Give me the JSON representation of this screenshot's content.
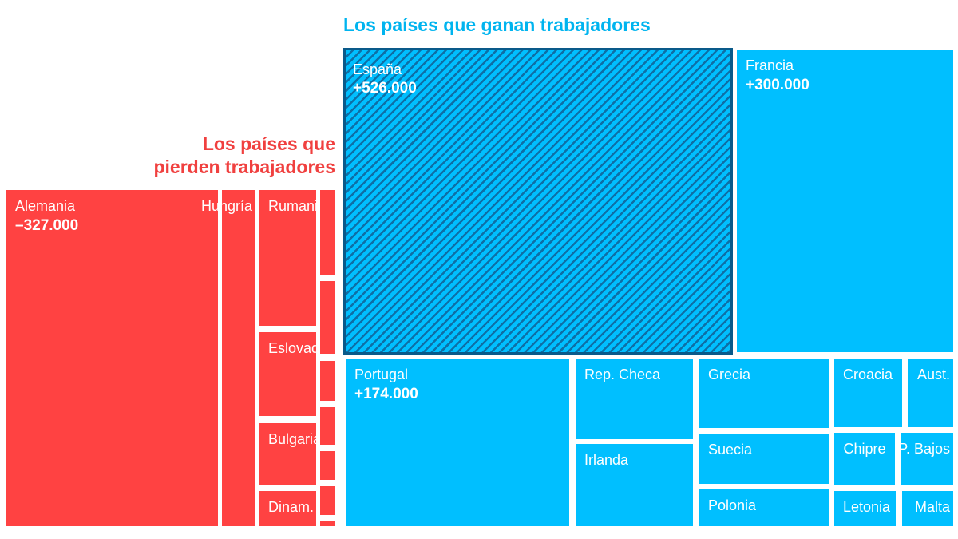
{
  "chart_data": {
    "type": "treemap",
    "colors": {
      "gain": "#00bfff",
      "loss": "#ff4242",
      "highlight_border": "#0a5a8a"
    },
    "groups": [
      {
        "title": "Los países que ganan trabajadores",
        "color": "#00bfff",
        "items": [
          {
            "name": "España",
            "value": "+526.000",
            "highlight": true
          },
          {
            "name": "Francia",
            "value": "+300.000"
          },
          {
            "name": "Portugal",
            "value": "+174.000"
          },
          {
            "name": "Rep. Checa"
          },
          {
            "name": "Irlanda"
          },
          {
            "name": "Grecia"
          },
          {
            "name": "Suecia"
          },
          {
            "name": "Polonia"
          },
          {
            "name": "Croacia"
          },
          {
            "name": "Aust."
          },
          {
            "name": "Chipre"
          },
          {
            "name": "P. Bajos"
          },
          {
            "name": "Letonia"
          },
          {
            "name": "Malta"
          }
        ]
      },
      {
        "title": "Los países que pierden trabajadores",
        "title_lines": [
          "Los países que",
          "pierden trabajadores"
        ],
        "color": "#ff4242",
        "items": [
          {
            "name": "Alemania",
            "value": "–327.000"
          },
          {
            "name": "Hungría"
          },
          {
            "name": "Rumania"
          },
          {
            "name": "Eslovaq."
          },
          {
            "name": "Bulgaria"
          },
          {
            "name": "Dinam."
          },
          {
            "name": ""
          },
          {
            "name": ""
          },
          {
            "name": ""
          },
          {
            "name": ""
          },
          {
            "name": ""
          },
          {
            "name": ""
          },
          {
            "name": ""
          }
        ]
      }
    ]
  }
}
